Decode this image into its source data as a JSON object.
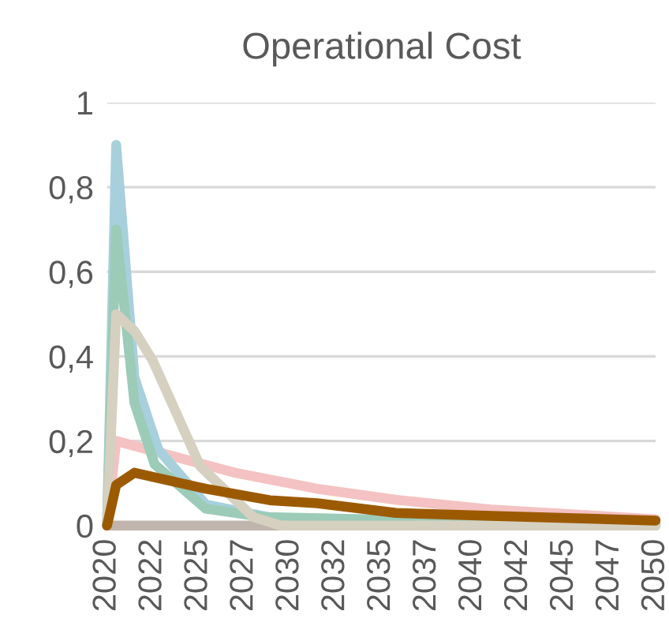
{
  "chart_data": {
    "type": "line",
    "title": "Operational Cost",
    "series": [
      {
        "color": "#c0b5ad",
        "x": [
          2020,
          2020.5,
          2030,
          2040,
          2050
        ],
        "values": [
          0,
          0,
          0,
          0,
          0
        ]
      },
      {
        "color": "#f4c2c2",
        "x": [
          2020,
          2020.5,
          2027,
          2031.5,
          2036,
          2041,
          2050
        ],
        "values": [
          0,
          0.2,
          0.125,
          0.087,
          0.06,
          0.038,
          0.015
        ]
      },
      {
        "color": "#a8d0dc",
        "x": [
          2020,
          2020.5,
          2021.5,
          2022.8,
          2025.4,
          2030,
          2035,
          2050
        ],
        "values": [
          0,
          0.9,
          0.35,
          0.18,
          0.05,
          0.01,
          0,
          0
        ]
      },
      {
        "color": "#9ccbb8",
        "x": [
          2020,
          2020.5,
          2021.5,
          2022.6,
          2025.4,
          2028.6,
          2040,
          2050
        ],
        "values": [
          0,
          0.7,
          0.29,
          0.145,
          0.04,
          0.02,
          0.01,
          0.005
        ]
      },
      {
        "color": "#d6d0c0",
        "x": [
          2020,
          2020.5,
          2021.5,
          2022.5,
          2025.1,
          2028,
          2029.5,
          2050
        ],
        "values": [
          0,
          0.5,
          0.46,
          0.39,
          0.14,
          0.02,
          0,
          0
        ]
      },
      {
        "color": "#9c5a00",
        "x": [
          2020,
          2020.5,
          2021.5,
          2025.4,
          2028.9,
          2031.5,
          2035.8,
          2041,
          2050
        ],
        "values": [
          0,
          0.096,
          0.125,
          0.087,
          0.06,
          0.053,
          0.03,
          0.023,
          0.012
        ]
      }
    ],
    "xlim": [
      2020,
      2050
    ],
    "xticks": [
      2020,
      {
        "value": 2022.5,
        "label": "2022"
      },
      2025,
      {
        "value": 2027.5,
        "label": "2027"
      },
      2030,
      {
        "value": 2032.5,
        "label": "2032"
      },
      2035,
      {
        "value": 2037.5,
        "label": "2037"
      },
      2040,
      {
        "value": 2042.5,
        "label": "2042"
      },
      2045,
      {
        "value": 2047.5,
        "label": "2047"
      },
      2050
    ],
    "ylim": [
      0,
      1
    ],
    "yticks": [
      0,
      {
        "value": 0.2,
        "label": "0,2"
      },
      {
        "value": 0.4,
        "label": "0,4"
      },
      {
        "value": 0.6,
        "label": "0,6"
      },
      {
        "value": 0.8,
        "label": "0,8"
      },
      1
    ],
    "grid": "y",
    "legend": false
  }
}
